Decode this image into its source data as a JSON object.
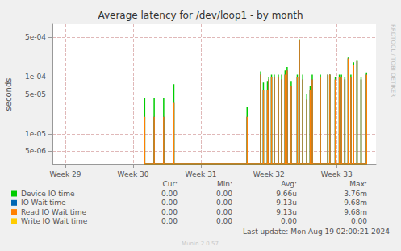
{
  "chart_data": {
    "type": "line",
    "title": "Average latency for /dev/loop1 - by month",
    "ylabel": "seconds",
    "footer": "Last update: Mon Aug 19 02:00:21 2024",
    "credit": "Munin 2.0.57",
    "watermark": "RRDTOOL / TOBI OETIKER",
    "log": "y",
    "grid": true,
    "xlim": [
      28.81,
      33.58
    ],
    "xticks": [
      {
        "value": 29,
        "label": "Week 29"
      },
      {
        "value": 30,
        "label": "Week 30"
      },
      {
        "value": 31,
        "label": "Week 31"
      },
      {
        "value": 32,
        "label": "Week 32"
      },
      {
        "value": 33,
        "label": "Week 33"
      }
    ],
    "ylim": [
      3e-06,
      0.00084
    ],
    "yticks": [
      {
        "value": 5e-06,
        "label": "5e-06"
      },
      {
        "value": 1e-05,
        "label": "1e-05"
      },
      {
        "value": 5e-05,
        "label": "5e-05"
      },
      {
        "value": 0.0001,
        "label": "1e-04"
      },
      {
        "value": 0.0005,
        "label": "5e-04"
      }
    ],
    "x": [
      30.17,
      30.31,
      30.45,
      30.6,
      31.68,
      31.88,
      31.92,
      31.98,
      32.0,
      32.04,
      32.08,
      32.14,
      32.19,
      32.24,
      32.27,
      32.33,
      32.42,
      32.45,
      32.5,
      32.56,
      32.61,
      32.64,
      32.76,
      32.87,
      32.9,
      32.98,
      33.04,
      33.07,
      33.12,
      33.17,
      33.21,
      33.25,
      33.3,
      33.36,
      33.44
    ],
    "stats_columns": [
      "Cur:",
      "Min:",
      "Avg:",
      "Max:"
    ],
    "series": [
      {
        "name": "Device IO time",
        "color": "#00cc00",
        "stats": [
          "0.00",
          "0.00",
          "9.66u",
          "3.76m"
        ],
        "values": [
          4.2e-05,
          4.2e-05,
          4.2e-05,
          7.5e-05,
          3e-05,
          0.000125,
          8e-05,
          8.5e-05,
          0.0001,
          0.00011,
          0.00011,
          0.00011,
          0.00011,
          0.00013,
          0.00015,
          8.5e-05,
          0.00011,
          0.00046,
          0.00011,
          5e-05,
          7e-05,
          0.00011,
          0.00011,
          0.00011,
          0.00011,
          0.0001,
          0.00011,
          0.00011,
          0.0001,
          0.00022,
          0.00011,
          0.00018,
          0.0002,
          0.0001,
          0.00012
        ]
      },
      {
        "name": "IO Wait time",
        "color": "#0066b3",
        "stats": [
          "0.00",
          "0.00",
          "9.13u",
          "9.68m"
        ],
        "values": [
          2e-05,
          2e-05,
          2e-05,
          3.5e-05,
          2e-05,
          0.00011,
          6e-05,
          6e-05,
          9e-05,
          0.0001,
          0.0001,
          0.0001,
          9e-05,
          0.00011,
          0.00013,
          7e-05,
          0.0001,
          0.00045,
          9e-05,
          4e-05,
          6e-05,
          9e-05,
          0.0001,
          0.00011,
          0.00011,
          9e-05,
          0.0001,
          0.0001,
          9e-05,
          0.00021,
          0.0001,
          0.00016,
          0.00019,
          9e-05,
          0.00011
        ]
      },
      {
        "name": "Read IO Wait time",
        "color": "#ff8000",
        "stats": [
          "0.00",
          "0.00",
          "9.13u",
          "9.68m"
        ],
        "values": [
          2e-05,
          2e-05,
          2e-05,
          3.5e-05,
          2e-05,
          0.00011,
          6e-05,
          6e-05,
          9e-05,
          0.0001,
          0.0001,
          0.0001,
          9e-05,
          0.00011,
          0.00013,
          7e-05,
          0.0001,
          0.00045,
          9e-05,
          4e-05,
          6e-05,
          9e-05,
          0.0001,
          0.00011,
          0.00011,
          9e-05,
          0.0001,
          0.0001,
          9e-05,
          0.00021,
          0.0001,
          0.00016,
          0.00019,
          9e-05,
          0.00011
        ]
      },
      {
        "name": "Write IO Wait time",
        "color": "#ffcc00",
        "stats": [
          "0.00",
          "0.00",
          "0.00",
          "0.00"
        ],
        "values": [
          null,
          null,
          null,
          null,
          null,
          null,
          null,
          null,
          null,
          null,
          null,
          null,
          null,
          null,
          null,
          null,
          null,
          null,
          null,
          null,
          null,
          null,
          null,
          null,
          null,
          null,
          null,
          null,
          null,
          null,
          null,
          null,
          null,
          null,
          null
        ]
      }
    ]
  }
}
